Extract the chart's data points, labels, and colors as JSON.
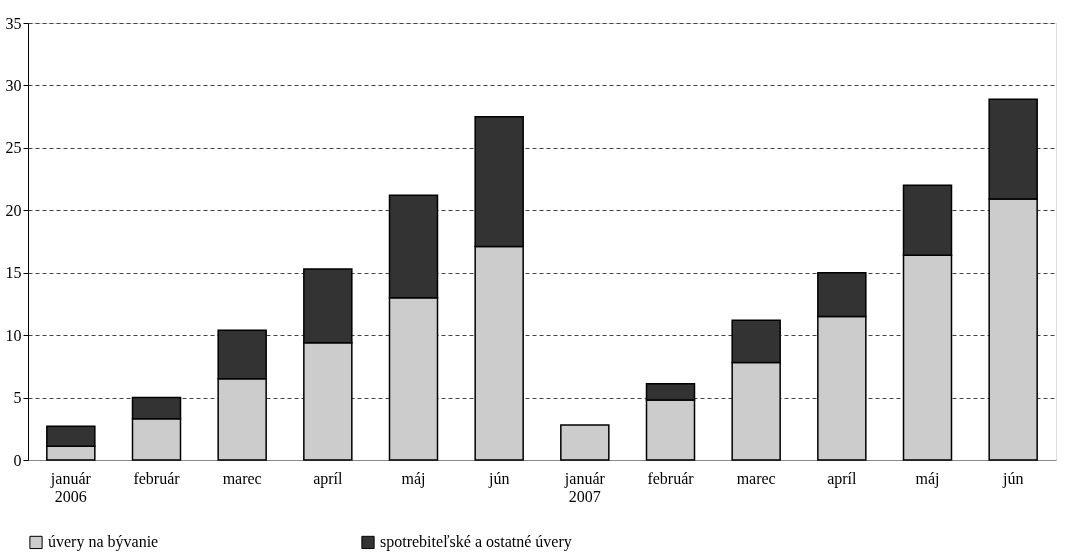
{
  "chart_data": {
    "type": "bar",
    "stacked": true,
    "categories": [
      "január\n2006",
      "február",
      "marec",
      "apríl",
      "máj",
      "jún",
      "január\n2007",
      "február",
      "marec",
      "apríl",
      "máj",
      "jún"
    ],
    "series": [
      {
        "name": "úvery na bývanie",
        "color": "#cccccc",
        "values": [
          1.1,
          3.3,
          6.5,
          9.4,
          13.0,
          17.1,
          2.8,
          4.8,
          7.8,
          11.5,
          16.4,
          20.9
        ]
      },
      {
        "name": "spotrebiteľské a ostatné úvery",
        "color": "#333333",
        "values": [
          1.6,
          1.7,
          3.9,
          5.9,
          8.2,
          10.4,
          null,
          1.3,
          3.4,
          3.5,
          5.6,
          8.0
        ]
      }
    ],
    "ylim": [
      0,
      35
    ],
    "yticks": [
      0,
      5,
      10,
      15,
      20,
      25,
      30,
      35
    ],
    "grid": "y",
    "legend": "bottom"
  }
}
